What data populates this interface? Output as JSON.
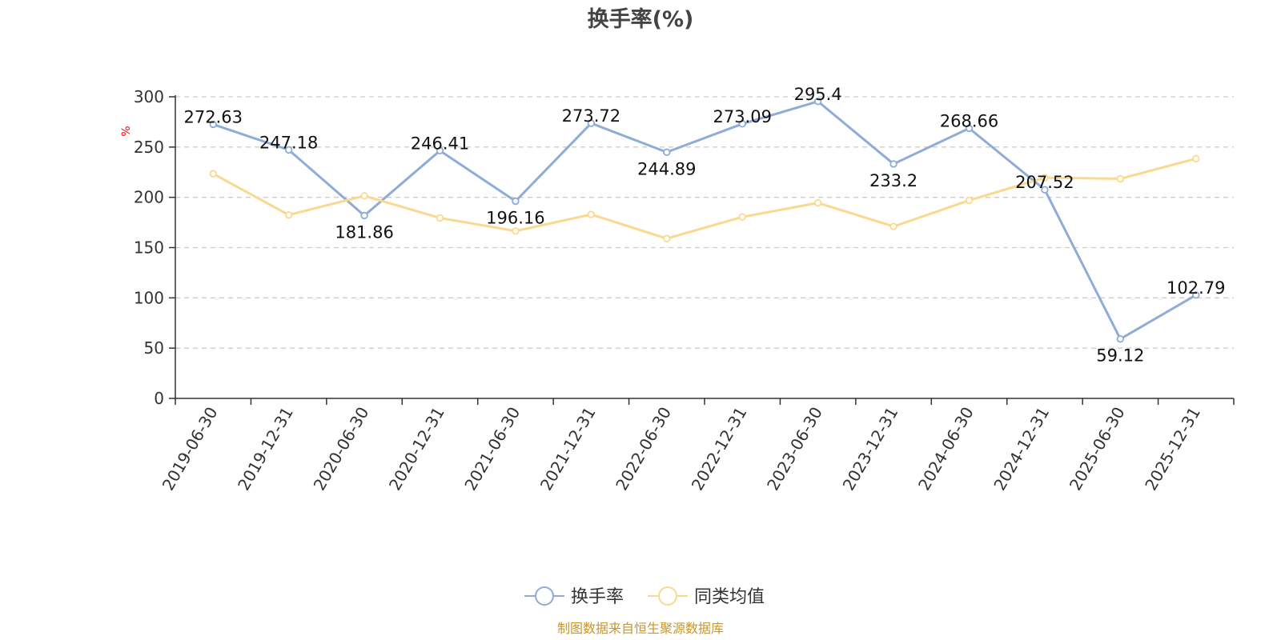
{
  "chart_data": {
    "type": "line",
    "title": "换手率(%)",
    "ylabel": "%",
    "xlabel": "",
    "ylim": [
      0,
      300
    ],
    "yticks": [
      0,
      50,
      100,
      150,
      200,
      250,
      300
    ],
    "grid": true,
    "legend_position": "bottom-center",
    "categories": [
      "2019-06-30",
      "2019-12-31",
      "2020-06-30",
      "2020-12-31",
      "2021-06-30",
      "2021-12-31",
      "2022-06-30",
      "2022-12-31",
      "2023-06-30",
      "2023-12-31",
      "2024-06-30",
      "2024-12-31",
      "2025-06-30",
      "2025-12-31"
    ],
    "series": [
      {
        "name": "换手率",
        "color": "#8fabd8",
        "values": [
          272.63,
          247.18,
          181.86,
          246.41,
          196.16,
          273.72,
          244.89,
          273.09,
          295.4,
          233.2,
          268.66,
          207.52,
          59.12,
          102.79
        ],
        "labels": [
          "272.63",
          "247.18",
          "181.86",
          "246.41",
          "196.16",
          "273.72",
          "244.89",
          "273.09",
          "295.4",
          "233.2",
          "268.66",
          "207.52",
          "59.12",
          "102.79"
        ]
      },
      {
        "name": "同类均值",
        "color": "#fad98f",
        "values": [
          223.5,
          182.5,
          201.5,
          179.5,
          166.5,
          183.0,
          159.0,
          180.5,
          194.5,
          171.0,
          197.0,
          219.5,
          218.5,
          238.5
        ]
      }
    ],
    "source": "制图数据来自恒生聚源数据库"
  }
}
